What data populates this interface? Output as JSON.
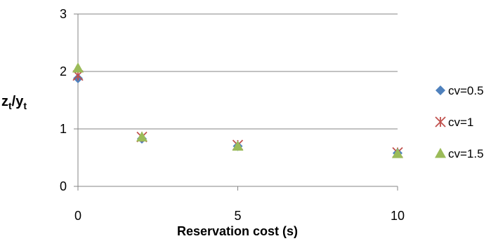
{
  "chart_data": {
    "type": "scatter",
    "title": "",
    "xlabel": "Reservation cost (s)",
    "ylabel": {
      "main": "z",
      "sub1": "t",
      "sep": "/y",
      "sub2": "t"
    },
    "xlim": [
      0,
      10
    ],
    "ylim": [
      0,
      3
    ],
    "x_ticks": [
      0,
      5,
      10
    ],
    "y_ticks": [
      0,
      1,
      2,
      3
    ],
    "grid": "horizontal",
    "legend_position": "right",
    "series": [
      {
        "name": "cv=0.5",
        "marker": "diamond",
        "color": "#4F81BD",
        "x": [
          0,
          2,
          5,
          10
        ],
        "y": [
          1.88,
          0.83,
          0.7,
          0.58
        ]
      },
      {
        "name": "cv=1",
        "marker": "star",
        "color": "#C0504D",
        "x": [
          0,
          2,
          5,
          10
        ],
        "y": [
          1.93,
          0.86,
          0.72,
          0.59
        ]
      },
      {
        "name": "cv=1.5",
        "marker": "triangle",
        "color": "#9BBB59",
        "x": [
          0,
          2,
          5,
          10
        ],
        "y": [
          2.06,
          0.86,
          0.7,
          0.57
        ]
      }
    ]
  }
}
